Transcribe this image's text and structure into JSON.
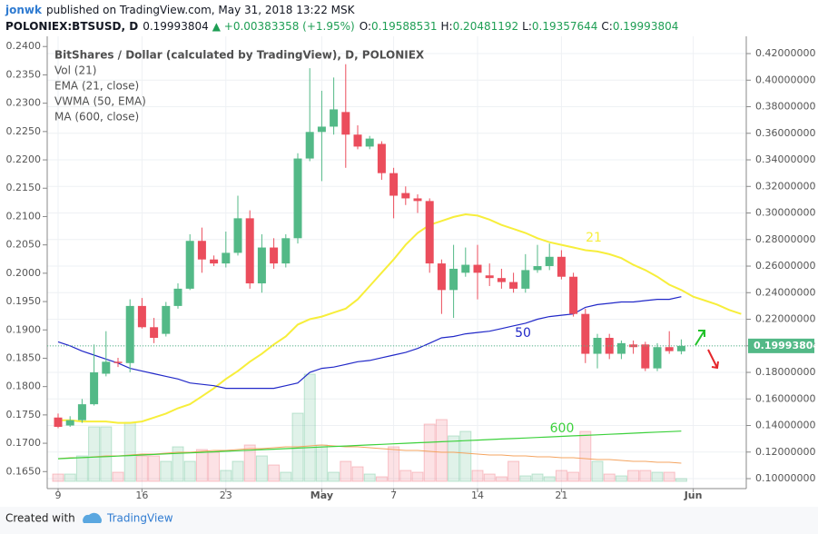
{
  "header": {
    "user": "jonwk",
    "published": "published on TradingView.com, May 31, 2018 13:22 MSK",
    "symbol": "POLONIEX:BTSUSD, D",
    "last": "0.19993804",
    "change": "▲ +0.00383358 (+1.95%)",
    "ohlc": [
      {
        "key": "O:",
        "value": "0.19588531"
      },
      {
        "key": "H:",
        "value": "0.20481192"
      },
      {
        "key": "L:",
        "value": "0.19357644"
      },
      {
        "key": "C:",
        "value": "0.19993804"
      }
    ]
  },
  "footer": {
    "created": "Created with",
    "brand": "TradingView"
  },
  "chart_data": {
    "type": "candlestick",
    "title": "BitShares / Dollar (calculated by TradingView), D, POLONIEX",
    "indicators": [
      "Vol (21)",
      "EMA (21, close)",
      "VWMA (50, EMA)",
      "MA (600, close)"
    ],
    "categories": [
      "9",
      null,
      null,
      null,
      null,
      null,
      null,
      "16",
      null,
      null,
      null,
      null,
      null,
      null,
      "23",
      null,
      null,
      null,
      null,
      null,
      null,
      null,
      "May",
      null,
      null,
      null,
      null,
      null,
      "7",
      null,
      null,
      null,
      null,
      null,
      null,
      "14",
      null,
      null,
      null,
      null,
      null,
      null,
      "21",
      null,
      null,
      null,
      null,
      null,
      null,
      null,
      null,
      null,
      null,
      "Jun",
      null,
      null,
      null,
      null
    ],
    "axis": "y2",
    "up_color": "#53b987",
    "down_color": "#eb4d5c",
    "open": [
      0.146,
      0.14,
      0.144,
      0.156,
      0.179,
      0.188,
      0.187,
      0.23,
      0.214,
      0.209,
      0.23,
      0.243,
      0.279,
      0.265,
      0.262,
      0.27,
      0.296,
      0.247,
      0.274,
      0.262,
      0.281,
      0.341,
      0.361,
      0.365,
      0.376,
      0.359,
      0.35,
      0.352,
      0.33,
      0.315,
      0.311,
      0.309,
      0.262,
      0.242,
      0.255,
      0.261,
      0.253,
      0.251,
      0.248,
      0.243,
      0.257,
      0.26,
      0.267,
      0.252,
      0.224,
      0.194,
      0.206,
      0.194,
      0.201,
      0.201,
      0.183,
      0.199,
      0.19588531,
      null,
      null,
      null,
      null,
      null
    ],
    "high": [
      0.149,
      0.147,
      0.16,
      0.201,
      0.211,
      0.191,
      0.235,
      0.236,
      0.221,
      0.233,
      0.247,
      0.284,
      0.289,
      0.268,
      0.286,
      0.313,
      0.302,
      0.284,
      0.281,
      0.284,
      0.345,
      0.409,
      0.392,
      0.402,
      0.412,
      0.366,
      0.358,
      0.354,
      0.334,
      0.32,
      0.314,
      0.311,
      0.265,
      0.276,
      0.274,
      0.276,
      0.262,
      0.258,
      0.255,
      0.269,
      0.276,
      0.277,
      0.272,
      0.255,
      0.228,
      0.209,
      0.209,
      0.204,
      0.204,
      0.203,
      0.202,
      0.211,
      0.20481192,
      null,
      null,
      null,
      null,
      null
    ],
    "low": [
      0.138,
      0.139,
      0.142,
      0.155,
      0.177,
      0.184,
      0.18,
      0.213,
      0.202,
      0.207,
      0.228,
      0.242,
      0.255,
      0.26,
      0.259,
      0.268,
      0.243,
      0.24,
      0.258,
      0.259,
      0.277,
      0.339,
      0.324,
      0.359,
      0.334,
      0.348,
      0.348,
      0.325,
      0.296,
      0.306,
      0.3,
      0.255,
      0.224,
      0.221,
      0.252,
      0.235,
      0.245,
      0.243,
      0.24,
      0.24,
      0.255,
      0.257,
      0.25,
      0.222,
      0.187,
      0.183,
      0.19,
      0.19,
      0.194,
      0.181,
      0.181,
      0.194,
      0.19357644,
      null,
      null,
      null,
      null,
      null
    ],
    "close": [
      0.139,
      0.144,
      0.156,
      0.18,
      0.188,
      0.187,
      0.23,
      0.214,
      0.206,
      0.23,
      0.243,
      0.279,
      0.265,
      0.262,
      0.27,
      0.296,
      0.247,
      0.274,
      0.262,
      0.281,
      0.341,
      0.361,
      0.365,
      0.378,
      0.359,
      0.35,
      0.356,
      0.33,
      0.313,
      0.311,
      0.309,
      0.262,
      0.242,
      0.258,
      0.261,
      0.255,
      0.251,
      0.248,
      0.243,
      0.257,
      0.26,
      0.267,
      0.252,
      0.224,
      0.194,
      0.206,
      0.194,
      0.202,
      0.199,
      0.183,
      0.199,
      0.196,
      0.19993804,
      null,
      null,
      null,
      null,
      null
    ],
    "volume": [
      8,
      8,
      28,
      60,
      60,
      10,
      65,
      28,
      28,
      22,
      38,
      22,
      35,
      32,
      12,
      22,
      40,
      28,
      18,
      10,
      75,
      118,
      40,
      10,
      22,
      16,
      8,
      5,
      38,
      12,
      10,
      63,
      68,
      50,
      55,
      12,
      8,
      5,
      22,
      6,
      8,
      5,
      12,
      10,
      55,
      22,
      8,
      6,
      12,
      12,
      10,
      10,
      3,
      null,
      null,
      null,
      null,
      null
    ],
    "volume_ma": [
      25,
      26,
      26,
      27,
      28,
      28,
      29,
      30,
      30,
      31,
      32,
      32,
      33,
      34,
      34,
      35,
      36,
      36,
      37,
      38,
      38,
      39,
      40,
      39,
      38,
      38,
      37,
      36,
      35,
      34,
      34,
      33,
      32,
      32,
      31,
      30,
      29,
      29,
      28,
      28,
      27,
      27,
      26,
      26,
      25,
      24,
      24,
      23,
      22,
      22,
      21,
      21,
      20,
      null,
      null,
      null,
      null,
      null
    ],
    "volume_ma_color": "#f4a460",
    "vol_lim": [
      0,
      130
    ],
    "series": [
      {
        "name": "21",
        "color": "#f7ee3b",
        "axis": "y2",
        "values": [
          0.144,
          0.144,
          0.143,
          0.143,
          0.143,
          0.142,
          0.142,
          0.143,
          0.146,
          0.149,
          0.153,
          0.156,
          0.162,
          0.168,
          0.175,
          0.181,
          0.188,
          0.194,
          0.201,
          0.207,
          0.216,
          0.22,
          0.222,
          0.225,
          0.228,
          0.235,
          0.245,
          0.255,
          0.265,
          0.276,
          0.285,
          0.291,
          0.294,
          0.297,
          0.299,
          0.298,
          0.295,
          0.291,
          0.288,
          0.285,
          0.281,
          0.278,
          0.276,
          0.274,
          0.272,
          0.271,
          0.269,
          0.266,
          0.261,
          0.257,
          0.252,
          0.246,
          0.242,
          0.237,
          0.234,
          0.231,
          0.227,
          0.224
        ]
      },
      {
        "name": "50",
        "color": "#2128c8",
        "axis": "y2",
        "values": [
          0.203,
          0.2,
          0.196,
          0.193,
          0.19,
          0.187,
          0.183,
          0.181,
          0.179,
          0.177,
          0.175,
          0.172,
          0.171,
          0.17,
          0.168,
          0.168,
          0.168,
          0.168,
          0.168,
          0.17,
          0.172,
          0.18,
          0.183,
          0.184,
          0.186,
          0.188,
          0.189,
          0.191,
          0.193,
          0.195,
          0.198,
          0.202,
          0.206,
          0.207,
          0.209,
          0.21,
          0.211,
          0.213,
          0.215,
          0.217,
          0.22,
          0.222,
          0.223,
          0.224,
          0.229,
          0.231,
          0.232,
          0.233,
          0.233,
          0.234,
          0.235,
          0.235,
          0.237,
          null,
          null,
          null,
          null,
          null
        ]
      },
      {
        "name": "600",
        "color": "#3cd13c",
        "axis": "y2",
        "values": [
          0.115,
          0.1154,
          0.1158,
          0.1162,
          0.1166,
          0.117,
          0.1174,
          0.1178,
          0.1182,
          0.1186,
          0.119,
          0.1194,
          0.1198,
          0.1202,
          0.1206,
          0.121,
          0.1214,
          0.1218,
          0.1222,
          0.1226,
          0.123,
          0.1234,
          0.1238,
          0.1242,
          0.1246,
          0.125,
          0.1254,
          0.1258,
          0.1262,
          0.1266,
          0.127,
          0.1274,
          0.1278,
          0.1282,
          0.1286,
          0.129,
          0.1294,
          0.1298,
          0.1302,
          0.1306,
          0.131,
          0.1314,
          0.1318,
          0.1322,
          0.1326,
          0.133,
          0.1334,
          0.1338,
          0.1342,
          0.1346,
          0.135,
          0.1354,
          0.1358,
          null,
          null,
          null,
          null,
          null
        ]
      }
    ],
    "ylim": [
      0.162,
      0.2418
    ],
    "yticks": [
      {
        "value": 0.165,
        "label": "0.1650"
      },
      {
        "value": 0.17,
        "label": "0.1700"
      },
      {
        "value": 0.175,
        "label": "0.1750"
      },
      {
        "value": 0.18,
        "label": "0.1800"
      },
      {
        "value": 0.185,
        "label": "0.1850"
      },
      {
        "value": 0.19,
        "label": "0.1900"
      },
      {
        "value": 0.195,
        "label": "0.1950"
      },
      {
        "value": 0.2,
        "label": "0.2000"
      },
      {
        "value": 0.205,
        "label": "0.2050"
      },
      {
        "value": 0.21,
        "label": "0.2100"
      },
      {
        "value": 0.215,
        "label": "0.2150"
      },
      {
        "value": 0.22,
        "label": "0.2200"
      },
      {
        "value": 0.225,
        "label": "0.2250"
      },
      {
        "value": 0.23,
        "label": "0.2300"
      },
      {
        "value": 0.235,
        "label": "0.2350"
      },
      {
        "value": 0.24,
        "label": "0.2400"
      }
    ],
    "y2lim": [
      0.0925,
      0.433
    ],
    "y2ticks": [
      {
        "value": 0.1,
        "label": "0.10000000"
      },
      {
        "value": 0.12,
        "label": "0.12000000"
      },
      {
        "value": 0.14,
        "label": "0.14000000"
      },
      {
        "value": 0.16,
        "label": "0.16000000"
      },
      {
        "value": 0.18,
        "label": "0.18000000"
      },
      {
        "value": 0.2,
        "label": "0.20000000"
      },
      {
        "value": 0.22,
        "label": "0.22000000"
      },
      {
        "value": 0.24,
        "label": "0.24000000"
      },
      {
        "value": 0.26,
        "label": "0.26000000"
      },
      {
        "value": 0.28,
        "label": "0.28000000"
      },
      {
        "value": 0.3,
        "label": "0.30000000"
      },
      {
        "value": 0.32,
        "label": "0.32000000"
      },
      {
        "value": 0.34,
        "label": "0.34000000"
      },
      {
        "value": 0.36,
        "label": "0.36000000"
      },
      {
        "value": 0.38,
        "label": "0.38000000"
      },
      {
        "value": 0.4,
        "label": "0.40000000"
      },
      {
        "value": 0.42,
        "label": "0.42000000"
      }
    ],
    "grid": true
  }
}
